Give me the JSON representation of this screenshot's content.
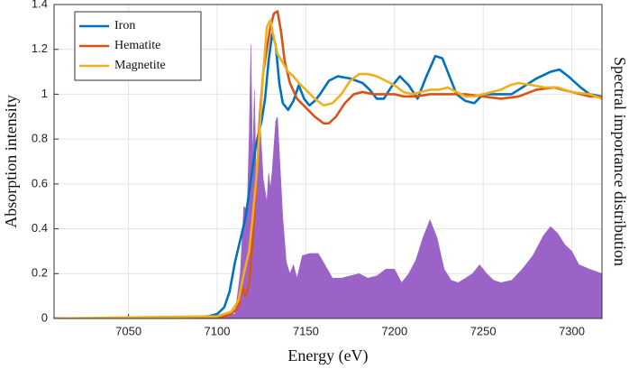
{
  "chart_data": {
    "type": "line",
    "xlabel": "Energy (eV)",
    "ylabel": "Absorption intensity",
    "y2label": "Spectral importance distribution",
    "xlim": [
      7008,
      7317
    ],
    "xticks": [
      7050,
      7100,
      7150,
      7200,
      7250,
      7300
    ],
    "ylim": [
      0,
      1.4
    ],
    "yticks": [
      0,
      0.2,
      0.4,
      0.6,
      0.8,
      1,
      1.2,
      1.4
    ],
    "grid": true,
    "legend": "upper left",
    "series": [
      {
        "type": "area",
        "color": "#9b62c8",
        "x": [
          7008,
          7100,
          7110,
          7113,
          7115,
          7116,
          7117,
          7118,
          7119,
          7120,
          7121,
          7122,
          7124,
          7126,
          7128,
          7129,
          7130,
          7131,
          7133,
          7134,
          7135,
          7137,
          7139,
          7141,
          7143,
          7145,
          7148,
          7152,
          7157,
          7160,
          7165,
          7170,
          7175,
          7180,
          7185,
          7190,
          7195,
          7200,
          7204,
          7208,
          7212,
          7216,
          7220,
          7224,
          7228,
          7232,
          7236,
          7240,
          7244,
          7248,
          7252,
          7256,
          7260,
          7266,
          7272,
          7278,
          7284,
          7288,
          7292,
          7296,
          7300,
          7304,
          7310,
          7317
        ],
        "values": [
          0,
          0,
          0.02,
          0.2,
          0.5,
          0.49,
          0.52,
          0.8,
          1.22,
          0.7,
          1.02,
          0.6,
          0.9,
          0.62,
          0.52,
          0.65,
          0.58,
          0.66,
          0.88,
          0.9,
          0.75,
          0.45,
          0.25,
          0.2,
          0.24,
          0.18,
          0.28,
          0.29,
          0.29,
          0.25,
          0.18,
          0.18,
          0.19,
          0.2,
          0.18,
          0.19,
          0.22,
          0.22,
          0.16,
          0.2,
          0.26,
          0.36,
          0.44,
          0.36,
          0.22,
          0.17,
          0.16,
          0.18,
          0.2,
          0.24,
          0.2,
          0.17,
          0.16,
          0.17,
          0.22,
          0.28,
          0.37,
          0.41,
          0.38,
          0.33,
          0.3,
          0.24,
          0.22,
          0.2
        ]
      },
      {
        "name": "Iron",
        "color": "#0072bd",
        "x": [
          7008,
          7050,
          7080,
          7095,
          7100,
          7104,
          7107,
          7110,
          7113,
          7116,
          7119,
          7122,
          7125,
          7127,
          7129,
          7131,
          7133,
          7135,
          7137,
          7140,
          7143,
          7146,
          7149,
          7152,
          7155,
          7158,
          7163,
          7168,
          7175,
          7182,
          7186,
          7190,
          7194,
          7198,
          7203,
          7208,
          7213,
          7218,
          7223,
          7227,
          7231,
          7235,
          7240,
          7245,
          7250,
          7258,
          7266,
          7272,
          7280,
          7288,
          7293,
          7298,
          7305,
          7310,
          7317
        ],
        "values": [
          0,
          0,
          0.005,
          0.01,
          0.02,
          0.05,
          0.12,
          0.25,
          0.35,
          0.45,
          0.62,
          0.78,
          0.88,
          0.98,
          1.15,
          1.27,
          1.22,
          1.05,
          0.96,
          0.93,
          0.97,
          1.04,
          0.98,
          0.95,
          0.97,
          1,
          1.06,
          1.08,
          1.07,
          1.05,
          1.02,
          0.98,
          0.98,
          1.03,
          1.08,
          1.04,
          0.98,
          1.08,
          1.17,
          1.16,
          1.08,
          1,
          0.97,
          0.96,
          1,
          1,
          1,
          1.03,
          1.07,
          1.1,
          1.11,
          1.08,
          1.03,
          1,
          0.99
        ]
      },
      {
        "name": "Hematite",
        "color": "#d95319",
        "x": [
          7008,
          7100,
          7108,
          7112,
          7114,
          7116,
          7118,
          7120,
          7122,
          7124,
          7126,
          7128,
          7130,
          7132,
          7134,
          7136,
          7138,
          7141,
          7145,
          7150,
          7155,
          7160,
          7163,
          7167,
          7172,
          7177,
          7182,
          7188,
          7195,
          7200,
          7205,
          7212,
          7220,
          7230,
          7240,
          7250,
          7260,
          7270,
          7280,
          7290,
          7300,
          7310,
          7317
        ],
        "values": [
          0,
          0,
          0.02,
          0.05,
          0.14,
          0.1,
          0.15,
          0.35,
          0.6,
          0.9,
          1.1,
          1.2,
          1.3,
          1.36,
          1.37,
          1.28,
          1.15,
          1.05,
          0.98,
          0.94,
          0.9,
          0.87,
          0.87,
          0.9,
          0.96,
          1,
          1.01,
          1,
          1,
          1,
          0.99,
          0.99,
          1,
          1,
          1,
          0.99,
          0.98,
          0.99,
          1.02,
          1.03,
          1.01,
          0.99,
          0.99
        ]
      },
      {
        "name": "Magnetite",
        "color": "#edb120",
        "x": [
          7008,
          7100,
          7108,
          7112,
          7115,
          7118,
          7120,
          7122,
          7124,
          7126,
          7128,
          7130,
          7132,
          7134,
          7137,
          7140,
          7143,
          7146,
          7150,
          7155,
          7160,
          7165,
          7170,
          7175,
          7180,
          7185,
          7190,
          7195,
          7200,
          7205,
          7210,
          7215,
          7220,
          7225,
          7230,
          7235,
          7240,
          7245,
          7250,
          7255,
          7260,
          7265,
          7270,
          7278,
          7285,
          7292,
          7300,
          7310,
          7317
        ],
        "values": [
          0,
          0.01,
          0.03,
          0.08,
          0.2,
          0.3,
          0.45,
          0.62,
          0.85,
          1.1,
          1.3,
          1.33,
          1.25,
          1.18,
          1.14,
          1.1,
          1.08,
          1.05,
          1.02,
          0.98,
          0.95,
          0.96,
          1,
          1.06,
          1.09,
          1.09,
          1.08,
          1.06,
          1.04,
          1.01,
          1,
          1.01,
          1.02,
          1.02,
          1.03,
          1.01,
          0.99,
          0.99,
          1,
          1.01,
          1.02,
          1.04,
          1.05,
          1.04,
          1.03,
          1.03,
          1.01,
          1,
          0.98
        ]
      }
    ]
  }
}
